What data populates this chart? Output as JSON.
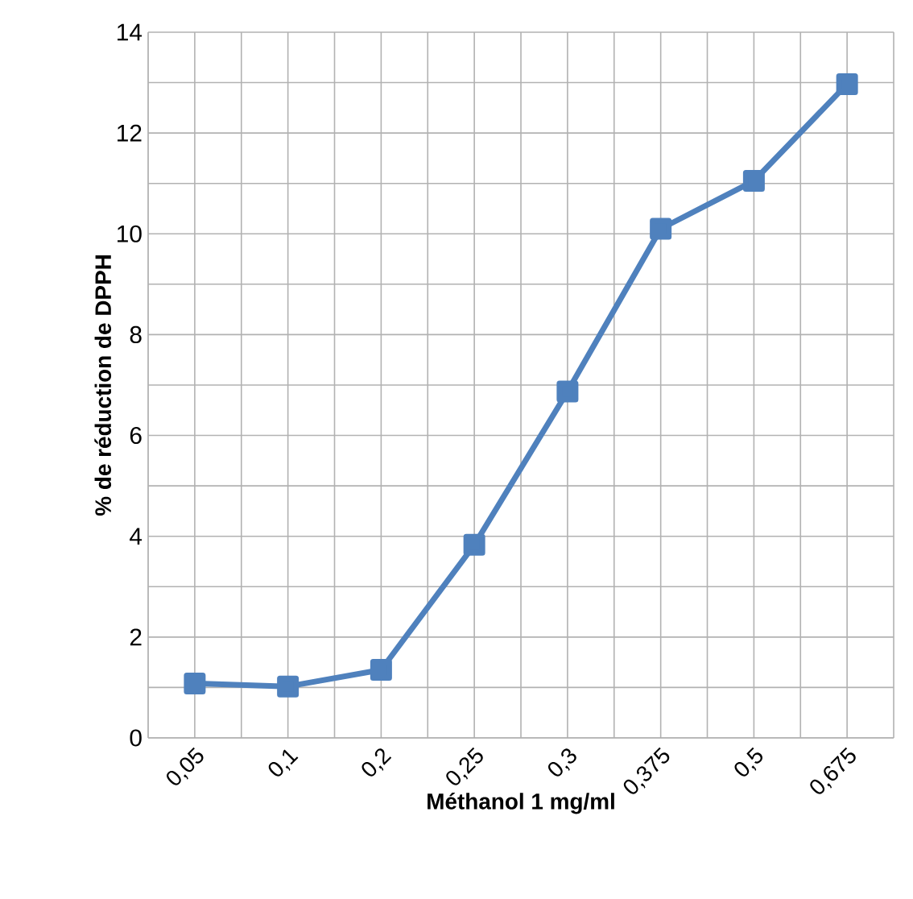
{
  "chart_data": {
    "type": "line",
    "xlabel": "Méthanol 1  mg/ml",
    "ylabel": "% de réduction de DPPH",
    "categories": [
      "0,05",
      "0,1",
      "0,2",
      "0,25",
      "0,3",
      "0,375",
      "0,5",
      "0,675"
    ],
    "series": [
      {
        "color": "#4f81bd",
        "values": [
          1.08,
          1.02,
          1.35,
          3.83,
          6.87,
          10.1,
          11.05,
          12.97
        ]
      }
    ],
    "ylim": [
      0,
      14
    ],
    "yticks": [
      0,
      2,
      4,
      6,
      8,
      10,
      12,
      14
    ],
    "grid": true,
    "marker": "square",
    "line_style": "solid"
  }
}
